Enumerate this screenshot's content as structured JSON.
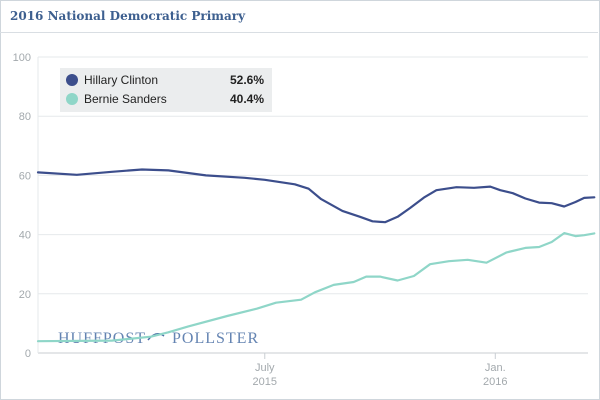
{
  "header": {
    "title": "2016 National Democratic Primary"
  },
  "watermark": {
    "left": "HUFFPOST",
    "right": "POLLSTER"
  },
  "chart_data": {
    "type": "line",
    "x_ticks": [
      {
        "date": "2015-07-01",
        "label": "July",
        "sublabel": "2015"
      },
      {
        "date": "2016-01-01",
        "label": "Jan.",
        "sublabel": "2016"
      }
    ],
    "x_range": [
      "2015-01-01",
      "2016-03-15"
    ],
    "ylim": [
      0,
      100
    ],
    "y_ticks": [
      0,
      20,
      40,
      60,
      80,
      100
    ],
    "grid": true,
    "legend_position": "top-left",
    "series": [
      {
        "name": "Hillary Clinton",
        "label": "52.6%",
        "color": "#3c4e8c",
        "points": [
          [
            "2015-01-01",
            61
          ],
          [
            "2015-02-01",
            60.2
          ],
          [
            "2015-03-01",
            61.2
          ],
          [
            "2015-03-25",
            62
          ],
          [
            "2015-04-15",
            61.7
          ],
          [
            "2015-05-15",
            60
          ],
          [
            "2015-06-15",
            59.2
          ],
          [
            "2015-07-01",
            58.5
          ],
          [
            "2015-07-25",
            57
          ],
          [
            "2015-08-05",
            55.5
          ],
          [
            "2015-08-15",
            52
          ],
          [
            "2015-09-01",
            48
          ],
          [
            "2015-09-15",
            46
          ],
          [
            "2015-09-25",
            44.5
          ],
          [
            "2015-10-05",
            44.2
          ],
          [
            "2015-10-15",
            46
          ],
          [
            "2015-10-25",
            49
          ],
          [
            "2015-11-05",
            52.5
          ],
          [
            "2015-11-15",
            55
          ],
          [
            "2015-12-01",
            56
          ],
          [
            "2015-12-15",
            55.8
          ],
          [
            "2015-12-28",
            56.2
          ],
          [
            "2016-01-05",
            55
          ],
          [
            "2016-01-15",
            54
          ],
          [
            "2016-01-25",
            52.2
          ],
          [
            "2016-02-05",
            50.8
          ],
          [
            "2016-02-15",
            50.6
          ],
          [
            "2016-02-25",
            49.5
          ],
          [
            "2016-03-05",
            51
          ],
          [
            "2016-03-12",
            52.4
          ],
          [
            "2016-03-20",
            52.6
          ]
        ]
      },
      {
        "name": "Bernie Sanders",
        "label": "40.4%",
        "color": "#8fd6c8",
        "points": [
          [
            "2015-01-01",
            4
          ],
          [
            "2015-03-01",
            4.2
          ],
          [
            "2015-04-01",
            5.5
          ],
          [
            "2015-04-15",
            7
          ],
          [
            "2015-05-01",
            9
          ],
          [
            "2015-06-01",
            12.5
          ],
          [
            "2015-06-25",
            15
          ],
          [
            "2015-07-10",
            17
          ],
          [
            "2015-07-30",
            18
          ],
          [
            "2015-08-10",
            20.5
          ],
          [
            "2015-08-25",
            23
          ],
          [
            "2015-09-10",
            24
          ],
          [
            "2015-09-20",
            25.8
          ],
          [
            "2015-10-01",
            25.8
          ],
          [
            "2015-10-15",
            24.5
          ],
          [
            "2015-10-28",
            26
          ],
          [
            "2015-11-10",
            30
          ],
          [
            "2015-11-25",
            31
          ],
          [
            "2015-12-10",
            31.5
          ],
          [
            "2015-12-25",
            30.5
          ],
          [
            "2016-01-10",
            34
          ],
          [
            "2016-01-25",
            35.5
          ],
          [
            "2016-02-05",
            35.8
          ],
          [
            "2016-02-15",
            37.5
          ],
          [
            "2016-02-25",
            40.5
          ],
          [
            "2016-03-05",
            39.5
          ],
          [
            "2016-03-12",
            39.8
          ],
          [
            "2016-03-20",
            40.4
          ]
        ]
      }
    ]
  }
}
